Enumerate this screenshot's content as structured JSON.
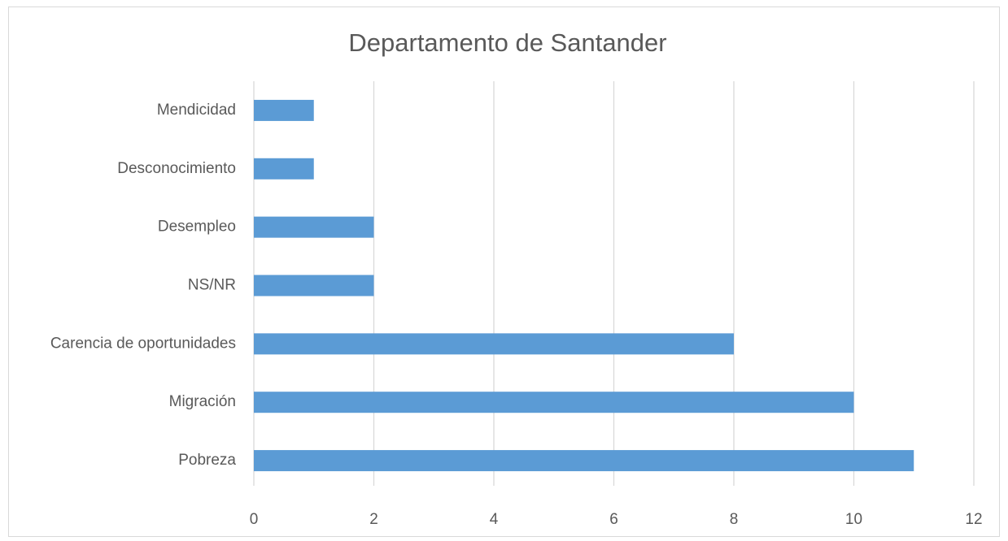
{
  "chart_data": {
    "type": "bar",
    "orientation": "horizontal",
    "title": "Departamento de Santander",
    "categories": [
      "Mendicidad",
      "Desconocimiento",
      "Desempleo",
      "NS/NR",
      "Carencia de oportunidades",
      "Migración",
      "Pobreza"
    ],
    "values": [
      1,
      1,
      2,
      2,
      8,
      10,
      11
    ],
    "color": "#5b9bd5",
    "xlim": [
      0,
      12
    ],
    "xticks": [
      0,
      2,
      4,
      6,
      8,
      10,
      12
    ],
    "grid": true
  }
}
